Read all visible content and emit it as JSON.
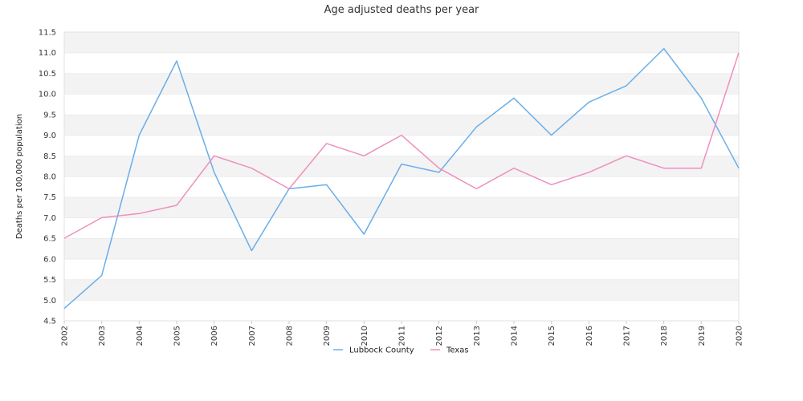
{
  "chart_data": {
    "type": "line",
    "title": "Age adjusted deaths per year",
    "xlabel": "",
    "ylabel": "Deaths per 100,000 population",
    "x": [
      "2002",
      "2003",
      "2004",
      "2005",
      "2006",
      "2007",
      "2008",
      "2009",
      "2010",
      "2011",
      "2012",
      "2013",
      "2014",
      "2015",
      "2016",
      "2017",
      "2018",
      "2019",
      "2020"
    ],
    "ylim": [
      4.5,
      11.5
    ],
    "yticks": [
      "4.5",
      "5.0",
      "5.5",
      "6.0",
      "6.5",
      "7.0",
      "7.5",
      "8.0",
      "8.5",
      "9.0",
      "9.5",
      "10.0",
      "10.5",
      "11.0",
      "11.5"
    ],
    "grid": "alternating horizontal bands",
    "legend_position": "bottom",
    "series": [
      {
        "name": "Lubbock County",
        "color": "#6aaee8",
        "values": [
          4.8,
          5.6,
          9.0,
          10.8,
          8.1,
          6.2,
          7.7,
          7.8,
          6.6,
          8.3,
          8.1,
          9.2,
          9.9,
          9.0,
          9.8,
          10.2,
          11.1,
          9.9,
          8.2
        ]
      },
      {
        "name": "Texas",
        "color": "#ee8fbd",
        "values": [
          6.5,
          7.0,
          7.1,
          7.3,
          8.5,
          8.2,
          7.7,
          8.8,
          8.5,
          9.0,
          8.2,
          7.7,
          8.2,
          7.8,
          8.1,
          8.5,
          8.2,
          8.2,
          11.0
        ]
      }
    ]
  }
}
